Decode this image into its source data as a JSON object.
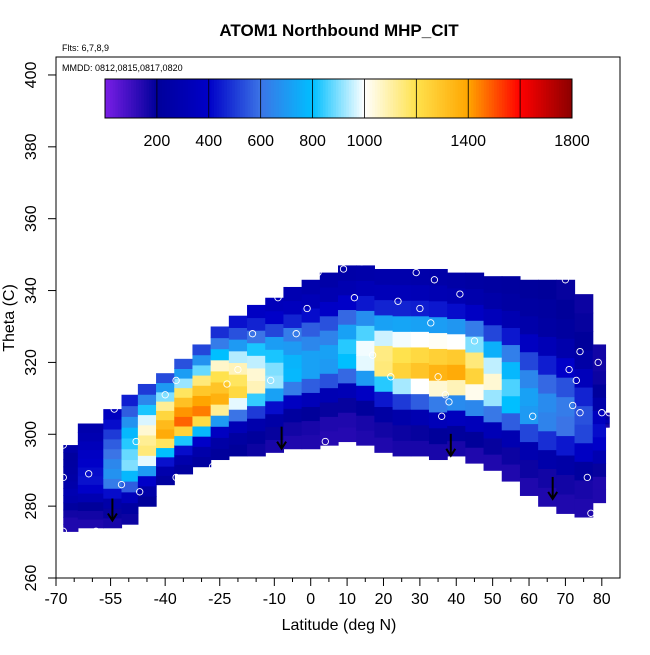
{
  "chart_data": {
    "type": "heatmap",
    "title": "ATOM1 Northbound MHP_CIT",
    "annotations": {
      "flights": "Flts: 6,7,8,9",
      "dates": "MMDD: 0812,0815,0817,0820"
    },
    "xlabel": "Latitude (deg N)",
    "ylabel": "Theta (C)",
    "xlim": [
      -70,
      85
    ],
    "ylim": [
      260,
      405
    ],
    "x_ticks": [
      -70,
      -55,
      -40,
      -25,
      -10,
      0,
      10,
      20,
      30,
      40,
      50,
      60,
      70,
      80
    ],
    "x_tick_labels": [
      "-70",
      "-55",
      "-40",
      "-25",
      "-10",
      "0",
      "10",
      "20",
      "30",
      "40",
      "50",
      "60",
      "70",
      "80"
    ],
    "x_minor_ticks": [
      -65,
      -60,
      -50,
      -45,
      -35,
      -30,
      -20,
      -15,
      -5,
      5,
      15,
      25,
      35,
      45,
      55,
      65,
      75
    ],
    "y_ticks": [
      260,
      280,
      300,
      320,
      340,
      360,
      380,
      400
    ],
    "y_tick_labels": [
      "260",
      "280",
      "300",
      "320",
      "340",
      "360",
      "380",
      "400"
    ],
    "colorbar": {
      "min": 0,
      "max": 1800,
      "tick_values": [
        200,
        400,
        600,
        800,
        1000,
        1400,
        1800
      ],
      "tick_labels": [
        "200",
        "400",
        "600",
        "800",
        "1000",
        "1400",
        "1800"
      ],
      "divisions": [
        200,
        400,
        600,
        800,
        1000,
        1200,
        1400,
        1600
      ],
      "colors": [
        "#7a1ee6",
        "#00009a",
        "#0000c8",
        "#3b74e6",
        "#00bfff",
        "#ffffff",
        "#ffe24d",
        "#ffa500",
        "#ff0000",
        "#8b0000"
      ]
    },
    "tropopause_arrows": [
      {
        "lat": -54.5,
        "theta": 276
      },
      {
        "lat": -8,
        "theta": 296
      },
      {
        "lat": 38.5,
        "theta": 294
      },
      {
        "lat": 66.5,
        "theta": 282
      }
    ],
    "sample_points": [
      [
        -68,
        297
      ],
      [
        -68,
        288
      ],
      [
        -68,
        273
      ],
      [
        -61,
        289
      ],
      [
        -59,
        273
      ],
      [
        -52,
        286
      ],
      [
        -47,
        284
      ],
      [
        -54,
        307
      ],
      [
        -48,
        298
      ],
      [
        -40,
        311
      ],
      [
        -37,
        315
      ],
      [
        -37,
        288
      ],
      [
        -27,
        291
      ],
      [
        -23,
        314
      ],
      [
        -20,
        318
      ],
      [
        -16,
        328
      ],
      [
        -11,
        315
      ],
      [
        -9,
        338
      ],
      [
        -6,
        342
      ],
      [
        -4,
        328
      ],
      [
        -1,
        335
      ],
      [
        2,
        345
      ],
      [
        4,
        298
      ],
      [
        9,
        346
      ],
      [
        12,
        338
      ],
      [
        14,
        348
      ],
      [
        17,
        322
      ],
      [
        22,
        316
      ],
      [
        24,
        337
      ],
      [
        29,
        345
      ],
      [
        30,
        335
      ],
      [
        33,
        331
      ],
      [
        34,
        343
      ],
      [
        35,
        316
      ],
      [
        36,
        305
      ],
      [
        37,
        311
      ],
      [
        38,
        309
      ],
      [
        41,
        339
      ],
      [
        45,
        326
      ],
      [
        61,
        305
      ],
      [
        70,
        343
      ],
      [
        71,
        318
      ],
      [
        72,
        308
      ],
      [
        73,
        315
      ],
      [
        74,
        306
      ],
      [
        74,
        323
      ],
      [
        76,
        288
      ],
      [
        77,
        278
      ],
      [
        79,
        320
      ],
      [
        80,
        306
      ],
      [
        82,
        306
      ]
    ],
    "profile_lats": [
      -68,
      -60,
      -54,
      -50,
      -45,
      -40,
      -35,
      -30,
      -25,
      -20,
      -15,
      -10,
      -5,
      0,
      5,
      10,
      15,
      20,
      25,
      30,
      35,
      40,
      45,
      50,
      55,
      60,
      65,
      70,
      75,
      80,
      82
    ],
    "profile_top_theta": [
      297,
      303,
      307,
      311,
      314,
      317,
      321,
      325,
      330,
      333,
      336,
      338,
      341,
      343,
      345,
      347,
      347,
      346,
      346,
      346,
      346,
      345,
      345,
      344,
      344,
      343,
      343,
      343,
      339,
      325,
      306
    ],
    "profile_bottom_theta": [
      273,
      274,
      274,
      275,
      280,
      286,
      289,
      291,
      293,
      294,
      294,
      295,
      296,
      296,
      297,
      298,
      297,
      295,
      294,
      294,
      293,
      294,
      292,
      290,
      287,
      283,
      280,
      278,
      277,
      281,
      302
    ],
    "grid_values": [
      [
        150,
        150,
        170,
        220,
        280,
        300,
        270,
        250,
        240,
        230,
        220,
        260
      ],
      [
        150,
        170,
        200,
        300,
        400,
        430,
        420,
        400,
        380,
        340,
        300,
        280
      ],
      [
        160,
        190,
        260,
        420,
        620,
        680,
        650,
        600,
        560,
        500,
        420,
        360
      ],
      [
        180,
        230,
        340,
        560,
        780,
        900,
        880,
        830,
        780,
        680,
        560,
        450
      ],
      [
        200,
        260,
        400,
        700,
        980,
        1150,
        1120,
        1050,
        970,
        820,
        650,
        500
      ],
      [
        220,
        280,
        430,
        800,
        1180,
        1380,
        1330,
        1240,
        1120,
        900,
        700,
        530
      ],
      [
        220,
        280,
        420,
        820,
        1250,
        1480,
        1420,
        1310,
        1180,
        920,
        710,
        540
      ],
      [
        220,
        270,
        400,
        780,
        1220,
        1450,
        1400,
        1290,
        1150,
        880,
        680,
        520
      ],
      [
        210,
        250,
        370,
        700,
        1120,
        1360,
        1300,
        1200,
        1060,
        800,
        620,
        480
      ],
      [
        200,
        230,
        320,
        600,
        980,
        1230,
        1180,
        1080,
        940,
        700,
        540,
        430
      ],
      [
        180,
        210,
        280,
        500,
        840,
        1080,
        1050,
        950,
        820,
        600,
        460,
        380
      ],
      [
        160,
        190,
        250,
        420,
        720,
        920,
        900,
        820,
        710,
        520,
        400,
        340
      ],
      [
        150,
        170,
        220,
        370,
        620,
        780,
        770,
        700,
        620,
        460,
        350,
        300
      ],
      [
        150,
        160,
        200,
        330,
        560,
        720,
        720,
        650,
        560,
        420,
        320,
        280
      ],
      [
        140,
        150,
        190,
        310,
        540,
        700,
        720,
        640,
        540,
        390,
        300,
        260
      ],
      [
        140,
        150,
        190,
        320,
        580,
        800,
        830,
        720,
        580,
        400,
        300,
        260
      ],
      [
        150,
        160,
        210,
        380,
        700,
        980,
        990,
        860,
        670,
        440,
        320,
        270
      ],
      [
        150,
        170,
        240,
        440,
        830,
        1150,
        1140,
        960,
        720,
        460,
        330,
        280
      ],
      [
        160,
        180,
        270,
        500,
        930,
        1250,
        1200,
        990,
        730,
        460,
        330,
        280
      ],
      [
        160,
        190,
        300,
        560,
        1000,
        1300,
        1230,
        1000,
        720,
        450,
        320,
        270
      ],
      [
        160,
        200,
        330,
        620,
        1050,
        1350,
        1260,
        1010,
        710,
        440,
        310,
        260
      ],
      [
        160,
        210,
        350,
        660,
        1080,
        1380,
        1280,
        1000,
        690,
        420,
        300,
        250
      ],
      [
        150,
        200,
        340,
        650,
        1020,
        1250,
        1150,
        900,
        620,
        380,
        280,
        240
      ],
      [
        150,
        190,
        320,
        610,
        920,
        1050,
        950,
        760,
        520,
        340,
        260,
        230
      ],
      [
        150,
        180,
        300,
        560,
        800,
        860,
        780,
        630,
        440,
        300,
        240,
        220
      ],
      [
        150,
        180,
        290,
        520,
        700,
        720,
        650,
        520,
        370,
        270,
        230,
        210
      ],
      [
        150,
        170,
        270,
        480,
        640,
        660,
        580,
        450,
        320,
        240,
        220,
        200
      ],
      [
        150,
        170,
        250,
        440,
        600,
        620,
        540,
        400,
        280,
        220,
        200,
        190
      ],
      [
        150,
        160,
        220,
        380,
        520,
        540,
        460,
        340,
        250,
        200,
        190,
        180
      ],
      [
        150,
        150,
        190,
        300,
        400,
        420,
        360,
        270,
        210,
        180,
        170,
        170
      ],
      [
        150,
        150,
        170,
        230,
        300,
        320,
        280,
        220,
        190,
        170,
        160,
        160
      ]
    ]
  }
}
